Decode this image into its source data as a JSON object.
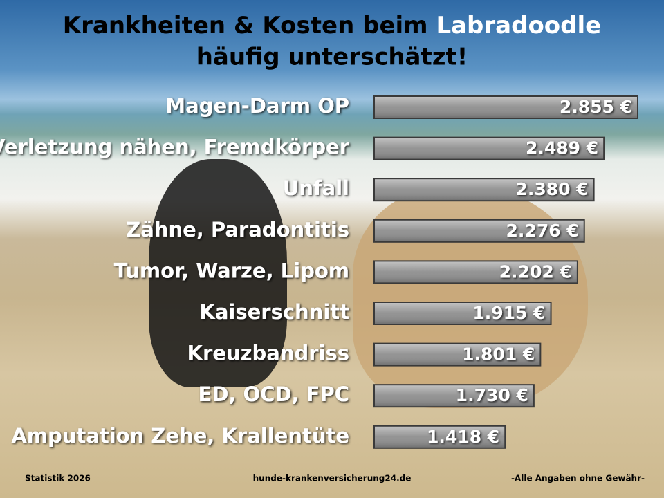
{
  "chart_data": {
    "type": "bar",
    "orientation": "horizontal",
    "title": [
      "Krankheiten & Kosten beim",
      "Labradoodle"
    ],
    "subtitle": "häufig unterschätzt!",
    "categories": [
      "Magen-Darm OP",
      "Verletzung nähen, Fremdkörper",
      "Unfall",
      "Zähne, Paradontitis",
      "Tumor, Warze, Lipom",
      "Kaiserschnitt",
      "Kreuzbandriss",
      "ED, OCD, FPC",
      "Amputation Zehe, Krallentüte"
    ],
    "values": [
      2855,
      2489,
      2380,
      2276,
      2202,
      1915,
      1801,
      1730,
      1418
    ],
    "value_labels": [
      "2.855 €",
      "2.489 €",
      "2.380 €",
      "2.276 €",
      "2.202 €",
      "1.915 €",
      "1.801 €",
      "1.730 €",
      "1.418 €"
    ],
    "color": "#8e8e8e"
  },
  "footer": {
    "left": "Statistik 2026",
    "center": "hunde-krankenversicherung24.de",
    "right": "-Alle Angaben ohne Gewähr-"
  }
}
